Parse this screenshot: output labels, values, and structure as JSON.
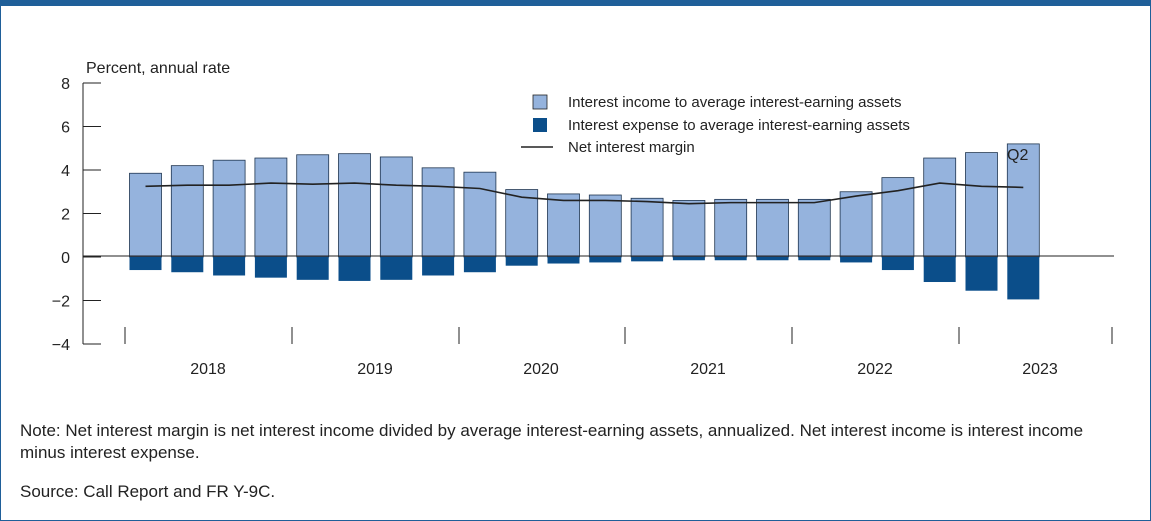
{
  "chart_data": {
    "type": "bar",
    "ylabel": "Percent, annual rate",
    "ylim": [
      -4,
      8
    ],
    "yticks": [
      "8",
      "6",
      "4",
      "2",
      "0",
      "−2",
      "−4"
    ],
    "ytick_values": [
      8,
      6,
      4,
      2,
      0,
      -2,
      -4
    ],
    "years": [
      "2018",
      "2019",
      "2020",
      "2021",
      "2022",
      "2023"
    ],
    "annotation": "Q2",
    "series": [
      {
        "name": "Interest income to average interest-earning assets",
        "color": "#95b3dd",
        "values": [
          3.85,
          4.2,
          4.45,
          4.55,
          4.7,
          4.75,
          4.6,
          4.1,
          3.9,
          3.1,
          2.9,
          2.85,
          2.7,
          2.6,
          2.65,
          2.65,
          2.65,
          3.0,
          3.65,
          4.55,
          4.8,
          5.2
        ]
      },
      {
        "name": "Interest expense to average interest-earning assets",
        "color": "#0b4e8a",
        "values": [
          -0.6,
          -0.7,
          -0.85,
          -0.95,
          -1.05,
          -1.1,
          -1.05,
          -0.85,
          -0.7,
          -0.4,
          -0.3,
          -0.25,
          -0.2,
          -0.15,
          -0.15,
          -0.15,
          -0.15,
          -0.25,
          -0.6,
          -1.15,
          -1.55,
          -1.95
        ]
      },
      {
        "name": "Net interest margin",
        "color": "#222222",
        "values": [
          3.25,
          3.3,
          3.3,
          3.4,
          3.35,
          3.4,
          3.3,
          3.25,
          3.15,
          2.75,
          2.6,
          2.6,
          2.55,
          2.45,
          2.5,
          2.5,
          2.5,
          2.8,
          3.05,
          3.4,
          3.25,
          3.2
        ]
      }
    ]
  },
  "note": "Note: Net interest margin is net interest income divided by average interest-earning assets, annualized. Net interest income is interest income minus interest expense.",
  "source": "Source: Call Report and FR Y-9C."
}
